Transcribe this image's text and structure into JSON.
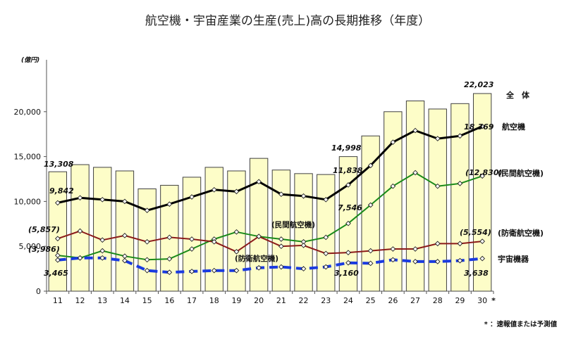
{
  "chart_data": {
    "type": "bar",
    "title": "航空機・宇宙産業の生産(売上)高の長期推移（年度）",
    "unit_label": "(億円)",
    "ylim": [
      0,
      25000
    ],
    "yticks": [
      "0",
      "5,000",
      "10,000",
      "15,000",
      "20,000"
    ],
    "ytick_values": [
      0,
      5000,
      10000,
      15000,
      20000
    ],
    "categories": [
      "11",
      "12",
      "13",
      "14",
      "15",
      "16",
      "17",
      "18",
      "19",
      "20",
      "21",
      "22",
      "23",
      "24",
      "25",
      "26",
      "27",
      "28",
      "29",
      "30"
    ],
    "last_category_mark": "*",
    "footnote": "* ：速報値または予測値",
    "series": [
      {
        "name": "全 体",
        "type": "bar",
        "values": [
          13308,
          14100,
          13800,
          13400,
          11400,
          11800,
          12700,
          13800,
          13400,
          14800,
          13500,
          13100,
          13000,
          14998,
          17300,
          20000,
          21200,
          20300,
          20900,
          22023
        ]
      },
      {
        "name": "航空機",
        "type": "line",
        "values": [
          9842,
          10400,
          10200,
          10000,
          9000,
          9700,
          10500,
          11300,
          11100,
          12200,
          10800,
          10600,
          10200,
          11838,
          14000,
          16600,
          17900,
          17000,
          17300,
          18369
        ]
      },
      {
        "name": "(民間航空機)",
        "type": "line",
        "values": [
          3986,
          3700,
          4500,
          3900,
          3500,
          3600,
          4700,
          5800,
          6600,
          6100,
          5800,
          5500,
          6000,
          7546,
          9600,
          11700,
          13200,
          11700,
          12000,
          12830
        ]
      },
      {
        "name": "(防衛航空機)",
        "type": "line",
        "values": [
          5857,
          6700,
          5700,
          6200,
          5500,
          6000,
          5800,
          5500,
          4400,
          6100,
          5000,
          5100,
          4200,
          4300,
          4500,
          4700,
          4700,
          5300,
          5300,
          5554
        ]
      },
      {
        "name": "宇宙機器",
        "type": "line",
        "values": [
          3465,
          3700,
          3700,
          3400,
          2300,
          2100,
          2200,
          2300,
          2300,
          2600,
          2700,
          2500,
          2700,
          3160,
          3100,
          3500,
          3300,
          3300,
          3400,
          3638
        ]
      }
    ],
    "colors": {
      "bar_fill": "#fdfdc8",
      "bar_stroke": "#404040",
      "aircraft": "#000000",
      "civil": "#1a8a1a",
      "defense": "#8b1a1a",
      "space": "#1a3ae0"
    },
    "data_labels": [
      {
        "text": "13,308"
      },
      {
        "text": "9,842"
      },
      {
        "text": "(5,857)"
      },
      {
        "text": "(3,986)"
      },
      {
        "text": "3,465"
      },
      {
        "text": "14,998"
      },
      {
        "text": "11,838"
      },
      {
        "text": "7,546"
      },
      {
        "text": "3,160"
      },
      {
        "text": "22,023"
      },
      {
        "text": "18,369"
      },
      {
        "text": "(12,830)"
      },
      {
        "text": "(5,554)"
      },
      {
        "text": "3,638"
      }
    ],
    "annotations": [
      {
        "text": "(民間航空機)"
      },
      {
        "text": "(防衛航空機)"
      }
    ],
    "legend_labels": [
      {
        "text": "全　体"
      },
      {
        "text": "航空機"
      },
      {
        "text": "(民間航空機)"
      },
      {
        "text": "(防衛航空機)"
      },
      {
        "text": "宇宙機器"
      }
    ]
  }
}
